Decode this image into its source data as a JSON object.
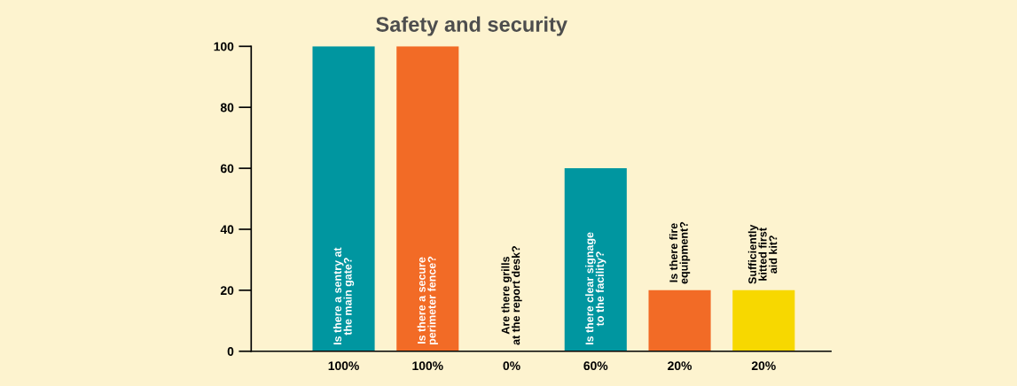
{
  "chart_data": {
    "type": "bar",
    "title": "Safety and security",
    "categories": [
      "Is there a sentry at\nthe main gate?",
      "Is there a secure\nperimeter fence?",
      "Are there grills\nat the report desk?",
      "Is there clear signage\nto the facility?",
      "Is there fire\nequipment?",
      "Sufficiently\nkitted first\naid kit?"
    ],
    "values": [
      100,
      100,
      0,
      60,
      20,
      20
    ],
    "colors": [
      "#0096a0",
      "#f26b26",
      "#0096a0",
      "#0096a0",
      "#f26b26",
      "#f7d800"
    ],
    "value_labels": [
      "100%",
      "100%",
      "0%",
      "60%",
      "20%",
      "20%"
    ],
    "ylim": [
      0,
      100
    ],
    "yticks": [
      0,
      20,
      40,
      60,
      80,
      100
    ],
    "grid": false,
    "legend": false
  }
}
